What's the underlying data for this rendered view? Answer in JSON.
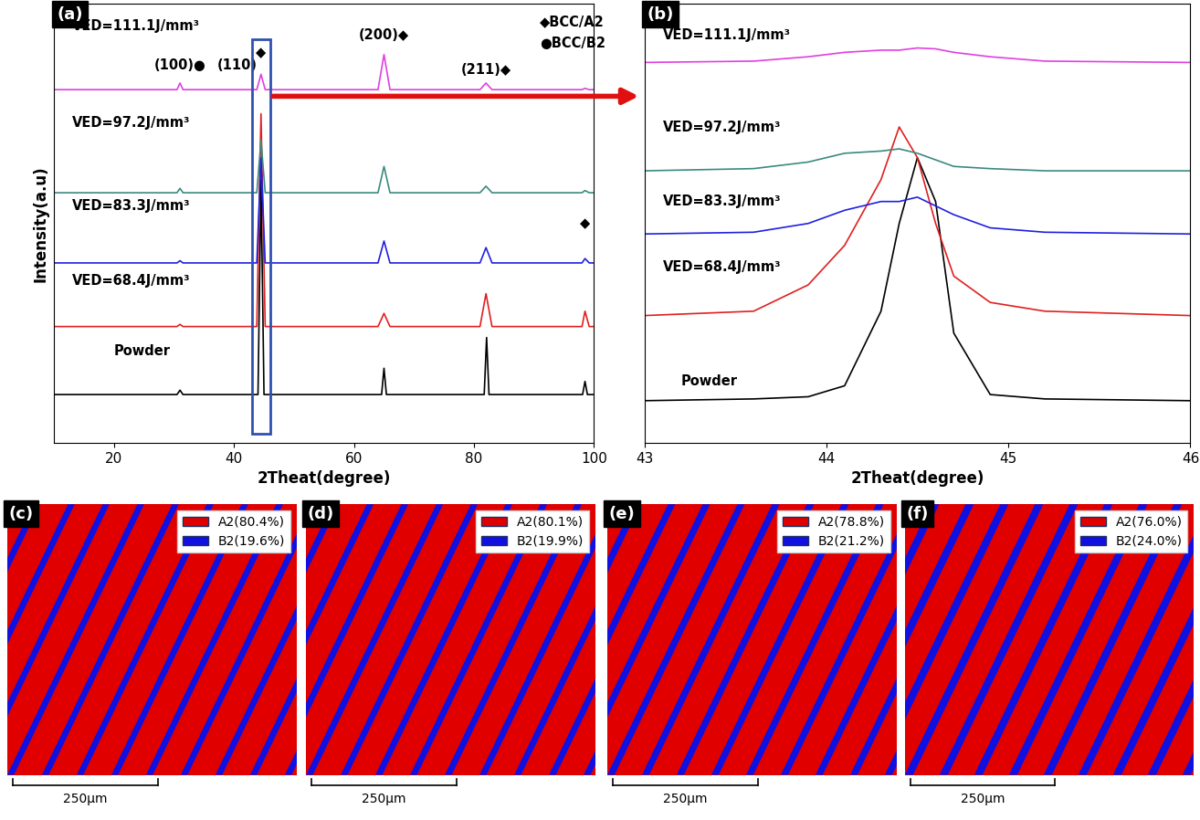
{
  "chart_data": [
    {
      "type": "line",
      "panel": "(a)",
      "xlabel": "2Theat(degree)",
      "ylabel": "Intensity(a.u)",
      "xlim": [
        10,
        100
      ],
      "xticks": [
        20,
        40,
        60,
        80,
        100
      ],
      "ylim": [
        0,
        100
      ],
      "tick_labels": "x",
      "series": [
        {
          "name": "Powder",
          "color": "#000000",
          "x": [
            10,
            30.5,
            31,
            31.5,
            44.0,
            44.5,
            45.0,
            64.6,
            65,
            65.4,
            81.7,
            82.1,
            82.5,
            98.1,
            98.5,
            98.9,
            100
          ],
          "values": [
            11,
            11,
            12,
            11,
            11,
            60,
            11,
            11,
            17,
            11,
            11,
            24,
            11,
            11,
            14,
            11,
            11
          ]
        },
        {
          "name": "VED=68.4J/mm³",
          "color": "#e02020",
          "x": [
            10,
            30.5,
            31,
            31.5,
            43.8,
            44.5,
            45.2,
            64,
            65,
            66,
            81,
            82,
            83,
            98,
            98.5,
            99.2,
            100
          ],
          "values": [
            26.5,
            26.5,
            27,
            26.5,
            26.5,
            75,
            26.5,
            26.5,
            29.5,
            26.5,
            26.5,
            34,
            26.5,
            26.5,
            30,
            26.5,
            26.5
          ]
        },
        {
          "name": "VED=83.3J/mm³",
          "color": "#2020e0",
          "x": [
            10,
            30.5,
            31,
            31.5,
            43.8,
            44.5,
            45.2,
            64,
            65,
            66,
            81,
            82,
            83,
            98,
            98.5,
            99.2,
            100
          ],
          "values": [
            41,
            41,
            41.5,
            41,
            41,
            65,
            41,
            41,
            46,
            41,
            41,
            44.5,
            41,
            41,
            42,
            41,
            41
          ]
        },
        {
          "name": "VED=97.2J/mm³",
          "color": "#3a8a80",
          "x": [
            10,
            30.5,
            31,
            31.5,
            43.8,
            44.5,
            45.2,
            64,
            65,
            66,
            81,
            82,
            83,
            98,
            98.5,
            99.2,
            100
          ],
          "values": [
            57,
            57,
            58,
            57,
            57,
            69,
            57,
            57,
            63,
            57,
            57,
            58.5,
            57,
            57,
            57.5,
            57,
            57
          ]
        },
        {
          "name": "VED=111.1J/mm³",
          "color": "#e040e0",
          "x": [
            10,
            30.5,
            31,
            31.5,
            43.8,
            44.5,
            45.2,
            64,
            65,
            66,
            81,
            82,
            83,
            98,
            98.5,
            99.2,
            100
          ],
          "values": [
            80.5,
            80.5,
            82,
            80.5,
            80.5,
            84,
            80.5,
            80.5,
            88.5,
            80.5,
            80.5,
            82,
            80.5,
            80.5,
            80.8,
            80.5,
            80.5
          ]
        }
      ],
      "annotations": [
        {
          "text": "VED=111.1J/mm³",
          "x": 13,
          "y": 95
        },
        {
          "text": "VED=97.2J/mm³",
          "x": 13,
          "y": 73
        },
        {
          "text": "VED=83.3J/mm³",
          "x": 13,
          "y": 54
        },
        {
          "text": "VED=68.4J/mm³",
          "x": 13,
          "y": 37
        },
        {
          "text": "Powder",
          "x": 20,
          "y": 21
        },
        {
          "text": "(100)●",
          "x": 31,
          "y": 86
        },
        {
          "text": "(110)",
          "x": 40.5,
          "y": 86
        },
        {
          "text": "◆",
          "x": 44.5,
          "y": 89
        },
        {
          "text": "(200)◆",
          "x": 65,
          "y": 93
        },
        {
          "text": "(211)◆",
          "x": 82,
          "y": 85
        },
        {
          "text": "◆",
          "x": 98.5,
          "y": 50
        },
        {
          "text": "◆BCC/A2",
          "x": 91,
          "y": 96
        },
        {
          "text": "●BCC/B2",
          "x": 91,
          "y": 91
        }
      ]
    },
    {
      "type": "line",
      "panel": "(b)",
      "xlabel": "2Theat(degree)",
      "xlim": [
        43,
        46
      ],
      "xticks": [
        43,
        44,
        45,
        46
      ],
      "ylim": [
        0,
        100
      ],
      "tick_labels": "x",
      "series": [
        {
          "name": "Powder",
          "color": "#000000",
          "x": [
            43,
            43.6,
            43.9,
            44.1,
            44.3,
            44.4,
            44.5,
            44.6,
            44.7,
            44.9,
            45.2,
            46
          ],
          "values": [
            9.6,
            10,
            10.5,
            13,
            30,
            50,
            65,
            55,
            25,
            11,
            10,
            9.6
          ]
        },
        {
          "name": "VED=68.4J/mm³",
          "color": "#e02020",
          "x": [
            43,
            43.6,
            43.9,
            44.1,
            44.3,
            44.4,
            44.5,
            44.6,
            44.7,
            44.9,
            45.2,
            46
          ],
          "values": [
            29,
            30,
            36,
            45,
            60,
            72,
            65,
            50,
            38,
            32,
            30,
            29
          ]
        },
        {
          "name": "VED=83.3J/mm³",
          "color": "#2020e0",
          "x": [
            43,
            43.6,
            43.9,
            44.1,
            44.3,
            44.4,
            44.5,
            44.6,
            44.7,
            44.9,
            45.2,
            46
          ],
          "values": [
            47.6,
            48,
            50,
            53,
            55,
            55,
            56,
            54,
            52,
            49,
            48,
            47.6
          ]
        },
        {
          "name": "VED=97.2J/mm³",
          "color": "#3a8a80",
          "x": [
            43,
            43.6,
            43.9,
            44.1,
            44.3,
            44.4,
            44.5,
            44.6,
            44.7,
            44.9,
            45.2,
            46
          ],
          "values": [
            62,
            62.5,
            64,
            66,
            66.5,
            67,
            66,
            64.5,
            63,
            62.5,
            62,
            62
          ]
        },
        {
          "name": "VED=111.1J/mm³",
          "color": "#e040e0",
          "x": [
            43,
            43.6,
            43.9,
            44.1,
            44.3,
            44.4,
            44.5,
            44.6,
            44.7,
            44.9,
            45.2,
            46
          ],
          "values": [
            86.7,
            87,
            88,
            89,
            89.5,
            89.5,
            90,
            89.8,
            89,
            88,
            87,
            86.7
          ]
        }
      ],
      "annotations": [
        {
          "text": "VED=111.1J/mm³",
          "x": 43.1,
          "y": 93
        },
        {
          "text": "VED=97.2J/mm³",
          "x": 43.1,
          "y": 72
        },
        {
          "text": "VED=83.3J/mm³",
          "x": 43.1,
          "y": 55
        },
        {
          "text": "VED=68.4J/mm³",
          "x": 43.1,
          "y": 40
        },
        {
          "text": "Powder",
          "x": 43.2,
          "y": 14
        }
      ]
    }
  ],
  "phase_maps": [
    {
      "panel": "(c)",
      "legend": "upper right",
      "scale_bar": "250μm",
      "phases": [
        {
          "name": "A2",
          "value": 80.4,
          "value_label": "A2(80.4%)",
          "color": "#e00000"
        },
        {
          "name": "B2",
          "value": 19.6,
          "value_label": "B2(19.6%)",
          "color": "#1010e0"
        }
      ]
    },
    {
      "panel": "(d)",
      "legend": "upper right",
      "scale_bar": "250μm",
      "phases": [
        {
          "name": "A2",
          "value": 80.1,
          "value_label": "A2(80.1%)",
          "color": "#e00000"
        },
        {
          "name": "B2",
          "value": 19.9,
          "value_label": "B2(19.9%)",
          "color": "#1010e0"
        }
      ]
    },
    {
      "panel": "(e)",
      "legend": "upper right",
      "scale_bar": "250μm",
      "phases": [
        {
          "name": "A2",
          "value": 78.8,
          "value_label": "A2(78.8%)",
          "color": "#e00000"
        },
        {
          "name": "B2",
          "value": 21.2,
          "value_label": "B2(21.2%)",
          "color": "#1010e0"
        }
      ]
    },
    {
      "panel": "(f)",
      "legend": "upper right",
      "scale_bar": "250μm",
      "phases": [
        {
          "name": "A2",
          "value": 76.0,
          "value_label": "A2(76.0%)",
          "color": "#e00000"
        },
        {
          "name": "B2",
          "value": 24.0,
          "value_label": "B2(24.0%)",
          "color": "#1010e0"
        }
      ]
    }
  ]
}
